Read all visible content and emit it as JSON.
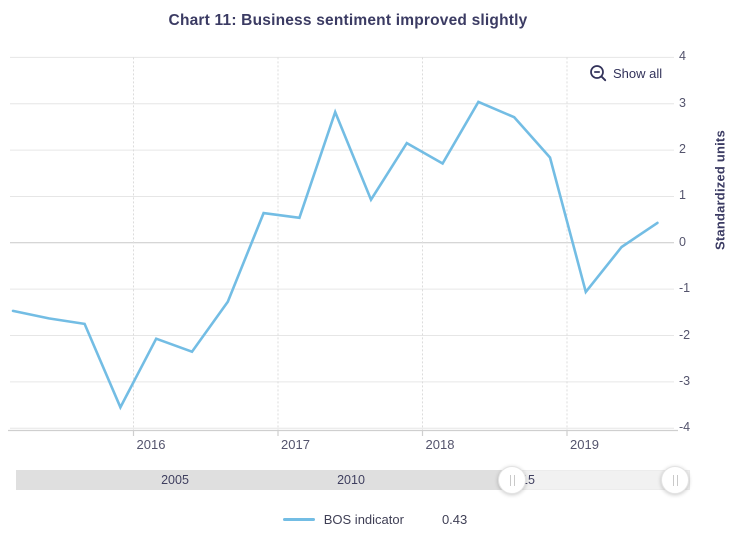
{
  "header": {
    "title": "Chart 11: Business sentiment improved slightly"
  },
  "toolbar": {
    "show_all_label": "Show all"
  },
  "chart_data": {
    "type": "line",
    "title": "Chart 11: Business sentiment improved slightly",
    "xlabel": "",
    "ylabel": "Standardized units",
    "ylim": [
      -4,
      4
    ],
    "y_ticks": [
      4,
      3,
      2,
      1,
      0,
      -1,
      -2,
      -3,
      -4
    ],
    "x_ticks": [
      "2016",
      "2017",
      "2018",
      "2019"
    ],
    "grid": true,
    "legend_position": "bottom",
    "series": [
      {
        "name": "BOS indicator",
        "color": "#73bde4",
        "x": [
          "2015 Q1",
          "2015 Q2",
          "2015 Q3",
          "2015 Q4",
          "2016 Q1",
          "2016 Q2",
          "2016 Q3",
          "2016 Q4",
          "2017 Q1",
          "2017 Q2",
          "2017 Q3",
          "2017 Q4",
          "2018 Q1",
          "2018 Q2",
          "2018 Q3",
          "2018 Q4",
          "2019 Q1",
          "2019 Q2",
          "2019 Q3"
        ],
        "values": [
          -1.47,
          -1.63,
          -1.75,
          -3.55,
          -2.07,
          -2.35,
          -1.27,
          0.64,
          0.54,
          2.82,
          0.93,
          2.15,
          1.71,
          3.04,
          2.71,
          1.84,
          -1.06,
          -0.09,
          0.43
        ]
      }
    ]
  },
  "legend": {
    "series_label": "BOS indicator",
    "value": "0.43"
  },
  "navigator": {
    "labels": [
      "2005",
      "2010",
      "2015"
    ]
  },
  "colors": {
    "line": "#73bde4",
    "grid": "#e6e6e6",
    "grid_zero": "#c9c9c9",
    "axis_line": "#cfcfcf",
    "vgrid": "#dcdcdc"
  }
}
